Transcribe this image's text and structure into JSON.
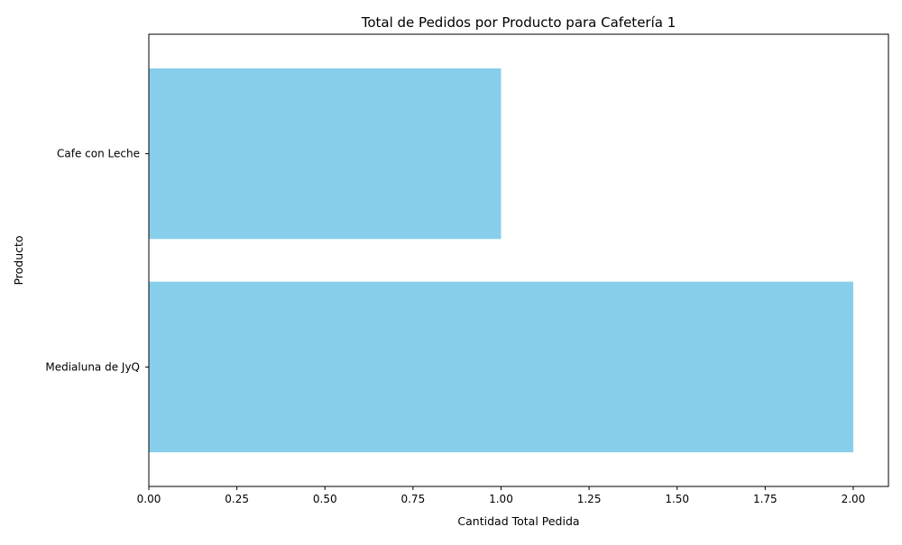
{
  "chart_data": {
    "type": "bar",
    "orientation": "horizontal",
    "title": "Total de Pedidos por Producto para Cafetería 1",
    "xlabel": "Cantidad Total Pedida",
    "ylabel": "Producto",
    "categories": [
      "Cafe con Leche",
      "Medialuna de JyQ"
    ],
    "values": [
      1,
      2
    ],
    "xlim": [
      0,
      2.1
    ],
    "x_ticks": [
      "0.00",
      "0.25",
      "0.50",
      "0.75",
      "1.00",
      "1.25",
      "1.50",
      "1.75",
      "2.00"
    ],
    "bar_color": "#87ceeb",
    "grid": false,
    "legend": "none"
  }
}
